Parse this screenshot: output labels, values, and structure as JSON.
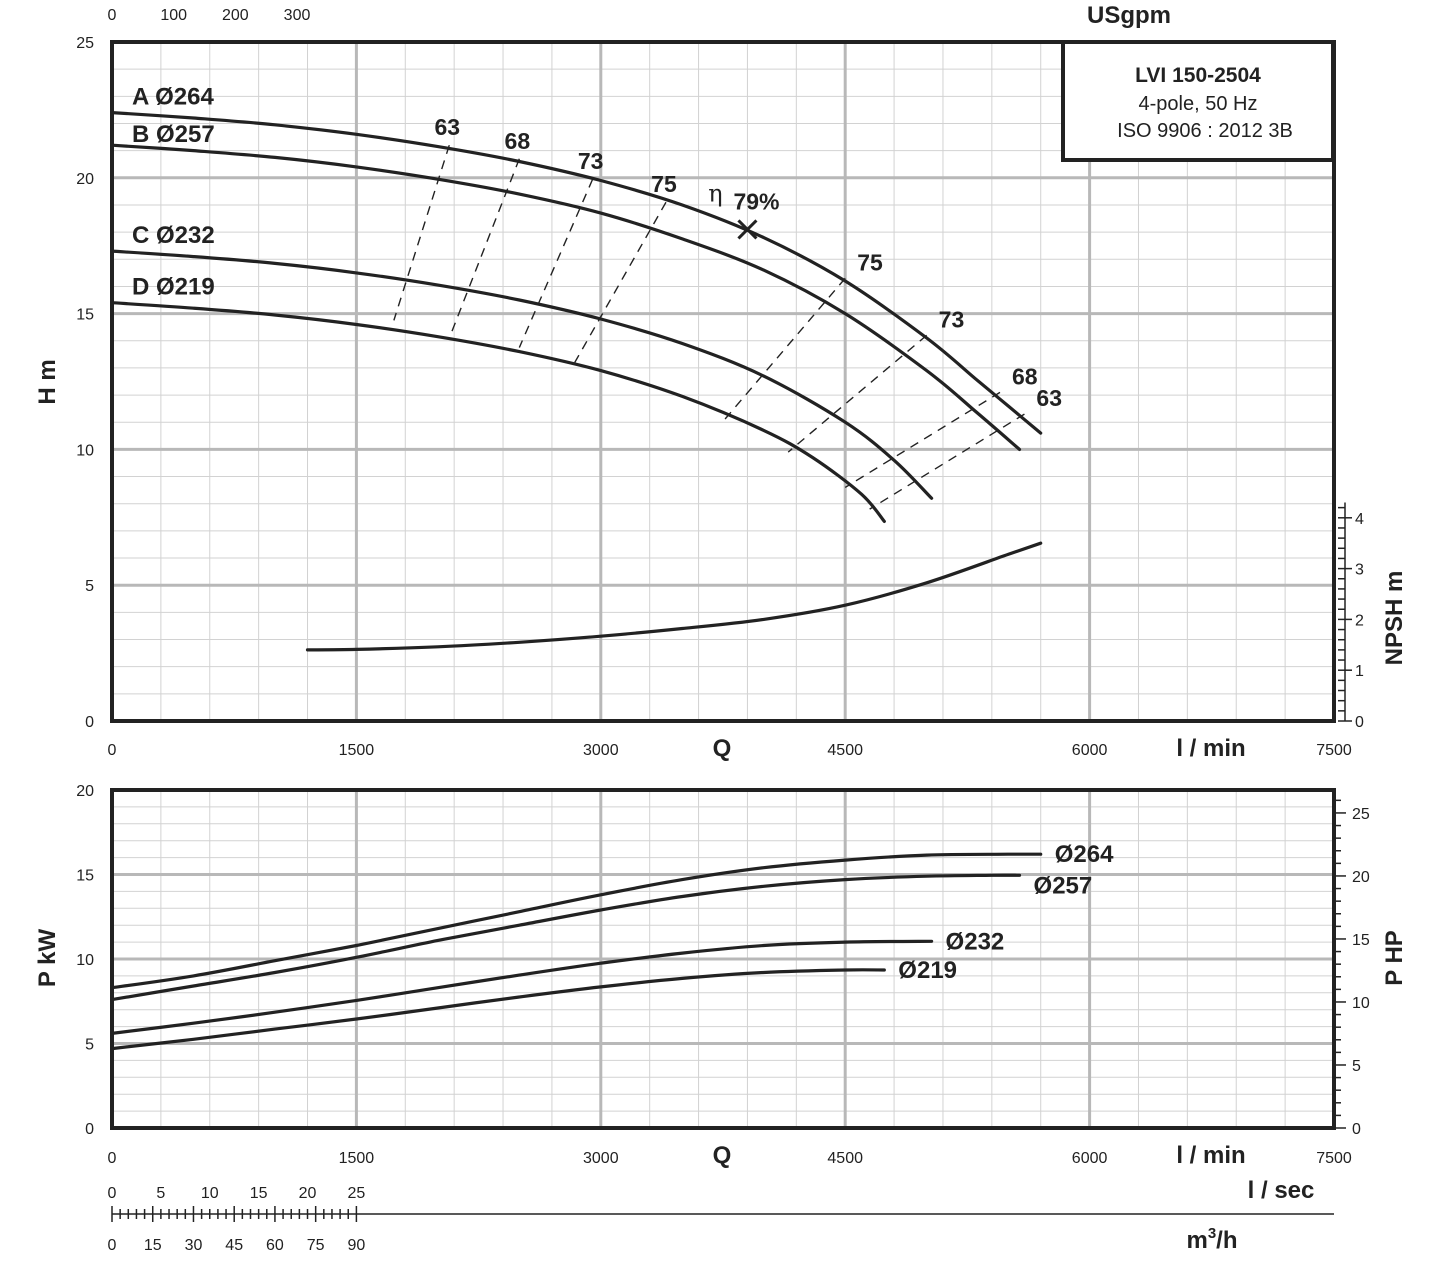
{
  "chart_data": [
    {
      "id": "head",
      "type": "line",
      "title": "",
      "info_box": {
        "model": "LVI 150-2504",
        "line2": "4-pole, 50 Hz",
        "line3": "ISO 9906 : 2012 3B"
      },
      "xlabel": "Q",
      "x_unit": "l / min",
      "ylabel": "H m",
      "ylabel_right": "NPSH m",
      "top_axis_unit": "USgpm",
      "xlim": [
        0,
        7500
      ],
      "ylim": [
        0,
        25
      ],
      "x_ticks": [
        "0",
        "1500",
        "3000",
        "4500",
        "6000",
        "7500"
      ],
      "y_ticks": [
        "0",
        "5",
        "10",
        "15",
        "20",
        "25"
      ],
      "top_ticks": [
        "0",
        "100",
        "200",
        "300"
      ],
      "npsh_ticks": [
        "0",
        "1",
        "2",
        "3",
        "4"
      ],
      "grid": true,
      "series": [
        {
          "name": "A Ø264",
          "x": [
            0,
            500,
            1000,
            1500,
            2000,
            2500,
            3000,
            3500,
            4000,
            4500,
            5000,
            5300,
            5500,
            5700
          ],
          "y": [
            22.4,
            22.2,
            21.95,
            21.6,
            21.15,
            20.6,
            19.9,
            19.0,
            17.8,
            16.2,
            14.1,
            12.6,
            11.6,
            10.6
          ]
        },
        {
          "name": "B Ø257",
          "x": [
            0,
            500,
            1000,
            1500,
            2000,
            2500,
            3000,
            3500,
            4000,
            4500,
            5000,
            5300,
            5570
          ],
          "y": [
            21.2,
            21.0,
            20.75,
            20.4,
            19.95,
            19.4,
            18.7,
            17.75,
            16.6,
            15.0,
            12.9,
            11.4,
            10.0
          ]
        },
        {
          "name": "C Ø232",
          "x": [
            0,
            500,
            1000,
            1500,
            2000,
            2500,
            3000,
            3500,
            4000,
            4500,
            4800,
            5030
          ],
          "y": [
            17.3,
            17.1,
            16.85,
            16.5,
            16.05,
            15.5,
            14.8,
            13.9,
            12.7,
            11.0,
            9.6,
            8.2
          ]
        },
        {
          "name": "D Ø219",
          "x": [
            0,
            500,
            1000,
            1500,
            2000,
            2500,
            3000,
            3500,
            4000,
            4300,
            4600,
            4740
          ],
          "y": [
            15.4,
            15.2,
            14.95,
            14.6,
            14.15,
            13.6,
            12.9,
            11.95,
            10.7,
            9.7,
            8.35,
            7.35
          ]
        }
      ],
      "npsh": {
        "name": "NPSH",
        "x": [
          1200,
          1500,
          2000,
          2500,
          3000,
          3500,
          4000,
          4500,
          5000,
          5500,
          5700
        ],
        "y": [
          1.4,
          1.41,
          1.46,
          1.55,
          1.67,
          1.82,
          2.0,
          2.28,
          2.72,
          3.28,
          3.5
        ]
      },
      "efficiency": {
        "symbol": "η",
        "bep_label": "79%",
        "bep": {
          "x": 3900,
          "y": 18.1
        },
        "left_lines": [
          {
            "label": "63",
            "from": {
              "x": 2070,
              "y": 21.2
            },
            "to": {
              "x": 1730,
              "y": 14.75
            }
          },
          {
            "label": "68",
            "from": {
              "x": 2500,
              "y": 20.7
            },
            "to": {
              "x": 2080,
              "y": 14.25
            }
          },
          {
            "label": "73",
            "from": {
              "x": 2950,
              "y": 19.95
            },
            "to": {
              "x": 2500,
              "y": 13.75
            }
          },
          {
            "label": "75",
            "from": {
              "x": 3400,
              "y": 19.1
            },
            "to": {
              "x": 2840,
              "y": 13.2
            }
          }
        ],
        "right_lines": [
          {
            "label": "75",
            "from": {
              "x": 4500,
              "y": 16.3
            },
            "to": {
              "x": 3760,
              "y": 11.1
            }
          },
          {
            "label": "73",
            "from": {
              "x": 5000,
              "y": 14.2
            },
            "to": {
              "x": 4150,
              "y": 9.9
            }
          },
          {
            "label": "68",
            "from": {
              "x": 5450,
              "y": 12.1
            },
            "to": {
              "x": 4500,
              "y": 8.6
            }
          },
          {
            "label": "63",
            "from": {
              "x": 5600,
              "y": 11.3
            },
            "to": {
              "x": 4650,
              "y": 7.8
            }
          }
        ]
      }
    },
    {
      "id": "power",
      "type": "line",
      "title": "",
      "xlabel": "Q",
      "x_unit": "l / min",
      "ylabel": "P kW",
      "ylabel_right": "P HP",
      "xlim": [
        0,
        7500
      ],
      "ylim": [
        0,
        20
      ],
      "x_ticks": [
        "0",
        "1500",
        "3000",
        "4500",
        "6000",
        "7500"
      ],
      "y_ticks": [
        "0",
        "5",
        "10",
        "15",
        "20"
      ],
      "hp_ticks": [
        "0",
        "5",
        "10",
        "15",
        "20",
        "25"
      ],
      "grid": true,
      "series": [
        {
          "name": "Ø264",
          "x": [
            0,
            500,
            1000,
            1500,
            2000,
            2500,
            3000,
            3500,
            4000,
            4500,
            5000,
            5500,
            5700
          ],
          "y": [
            8.3,
            9.0,
            9.9,
            10.8,
            11.8,
            12.8,
            13.8,
            14.7,
            15.4,
            15.85,
            16.15,
            16.2,
            16.2
          ]
        },
        {
          "name": "Ø257",
          "x": [
            0,
            500,
            1000,
            1500,
            2000,
            2500,
            3000,
            3500,
            4000,
            4500,
            5000,
            5400,
            5570
          ],
          "y": [
            7.6,
            8.4,
            9.2,
            10.1,
            11.1,
            12.0,
            12.9,
            13.7,
            14.3,
            14.7,
            14.9,
            14.95,
            14.95
          ]
        },
        {
          "name": "Ø232",
          "x": [
            0,
            500,
            1000,
            1500,
            2000,
            2500,
            3000,
            3500,
            4000,
            4500,
            5030
          ],
          "y": [
            5.6,
            6.2,
            6.85,
            7.55,
            8.3,
            9.05,
            9.75,
            10.35,
            10.8,
            11.0,
            11.05
          ]
        },
        {
          "name": "Ø219",
          "x": [
            0,
            500,
            1000,
            1500,
            2000,
            2500,
            3000,
            3500,
            4000,
            4500,
            4740
          ],
          "y": [
            4.7,
            5.25,
            5.85,
            6.45,
            7.1,
            7.75,
            8.35,
            8.85,
            9.2,
            9.35,
            9.35
          ]
        }
      ]
    }
  ],
  "lsec_axis": {
    "unit": "l / sec",
    "ticks": [
      "0",
      "5",
      "10",
      "15",
      "20",
      "25"
    ]
  },
  "m3h_axis": {
    "unit": "m",
    "unit_sup": "3",
    "unit_suffix": "/h",
    "ticks": [
      "0",
      "15",
      "30",
      "45",
      "60",
      "75",
      "90"
    ]
  }
}
